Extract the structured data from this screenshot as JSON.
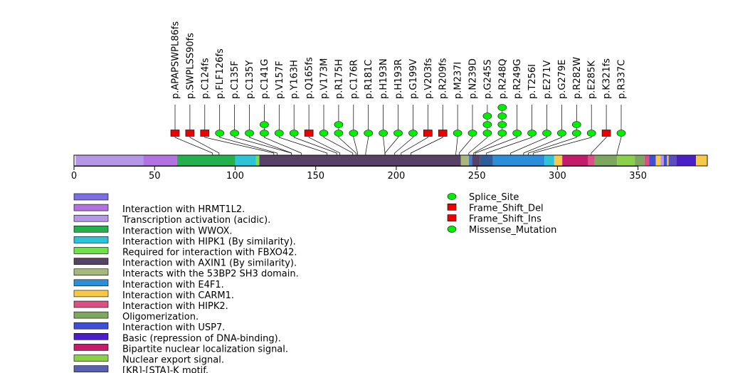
{
  "chart_data": {
    "type": "lollipop",
    "title": "",
    "xlabel": "",
    "ylabel": "",
    "protein_length": 393,
    "x_ticks": [
      0,
      50,
      100,
      150,
      200,
      250,
      300,
      350
    ],
    "domains": [
      {
        "start": 1,
        "end": 43,
        "color": "#b497e6"
      },
      {
        "start": 43,
        "end": 64,
        "color": "#b273e1"
      },
      {
        "start": 64,
        "end": 100,
        "color": "#22b14c"
      },
      {
        "start": 100,
        "end": 113,
        "color": "#2ec4d8"
      },
      {
        "start": 113,
        "end": 115,
        "color": "#6ee14b"
      },
      {
        "start": 115,
        "end": 240,
        "color": "#574167"
      },
      {
        "start": 240,
        "end": 245,
        "color": "#a8b87c"
      },
      {
        "start": 245,
        "end": 247,
        "color": "#3f7fd8"
      },
      {
        "start": 247,
        "end": 252,
        "color": "#574167"
      },
      {
        "start": 252,
        "end": 260,
        "color": "#2f5d9c"
      },
      {
        "start": 260,
        "end": 292,
        "color": "#2a8ed8"
      },
      {
        "start": 292,
        "end": 298,
        "color": "#2ec4d8"
      },
      {
        "start": 298,
        "end": 303,
        "color": "#f7c948"
      },
      {
        "start": 303,
        "end": 319,
        "color": "#c41b6a"
      },
      {
        "start": 319,
        "end": 323,
        "color": "#d94f86"
      },
      {
        "start": 323,
        "end": 337,
        "color": "#7da65e"
      },
      {
        "start": 337,
        "end": 348,
        "color": "#8cd04a"
      },
      {
        "start": 348,
        "end": 354,
        "color": "#7da65e"
      },
      {
        "start": 354,
        "end": 357,
        "color": "#d94f86"
      },
      {
        "start": 357,
        "end": 361,
        "color": "#3f4fd8"
      },
      {
        "start": 361,
        "end": 364,
        "color": "#f7c948"
      },
      {
        "start": 364,
        "end": 366,
        "color": "#b497e6"
      },
      {
        "start": 366,
        "end": 368,
        "color": "#3f4fd8"
      },
      {
        "start": 368,
        "end": 369,
        "color": "#f7c948"
      },
      {
        "start": 369,
        "end": 374,
        "color": "#5a4fbf"
      },
      {
        "start": 374,
        "end": 386,
        "color": "#4b1fc8"
      },
      {
        "start": 386,
        "end": 393,
        "color": "#f7c948"
      }
    ],
    "mutations": [
      {
        "label": "p.APAPSWPL86fs",
        "position": 86,
        "type": "Frame_Shift_Del",
        "count": 1
      },
      {
        "label": "p.SWPLSS90fs",
        "position": 90,
        "type": "Frame_Shift_Del",
        "count": 1
      },
      {
        "label": "p.C124fs",
        "position": 124,
        "type": "Frame_Shift_Del",
        "count": 1
      },
      {
        "label": "p.FLF126fs",
        "position": 126,
        "type": "Splice_Site",
        "count": 1
      },
      {
        "label": "p.C135F",
        "position": 135,
        "type": "Missense_Mutation",
        "count": 1
      },
      {
        "label": "p.C135Y",
        "position": 135,
        "type": "Missense_Mutation",
        "count": 1
      },
      {
        "label": "p.C141G",
        "position": 141,
        "type": "Missense_Mutation",
        "count": 2
      },
      {
        "label": "p.V157F",
        "position": 157,
        "type": "Missense_Mutation",
        "count": 1
      },
      {
        "label": "p.Y163H",
        "position": 163,
        "type": "Missense_Mutation",
        "count": 1
      },
      {
        "label": "p.Q165fs",
        "position": 165,
        "type": "Frame_Shift_Del",
        "count": 1
      },
      {
        "label": "p.V173M",
        "position": 173,
        "type": "Missense_Mutation",
        "count": 1
      },
      {
        "label": "p.R175H",
        "position": 175,
        "type": "Missense_Mutation",
        "count": 2
      },
      {
        "label": "p.C176R",
        "position": 176,
        "type": "Missense_Mutation",
        "count": 1
      },
      {
        "label": "p.R181C",
        "position": 181,
        "type": "Missense_Mutation",
        "count": 1
      },
      {
        "label": "p.H193N",
        "position": 193,
        "type": "Missense_Mutation",
        "count": 1
      },
      {
        "label": "p.H193R",
        "position": 193,
        "type": "Missense_Mutation",
        "count": 1
      },
      {
        "label": "p.G199V",
        "position": 199,
        "type": "Missense_Mutation",
        "count": 1
      },
      {
        "label": "p.V203fs",
        "position": 203,
        "type": "Frame_Shift_Del",
        "count": 1
      },
      {
        "label": "p.R209fs",
        "position": 209,
        "type": "Frame_Shift_Ins",
        "count": 1
      },
      {
        "label": "p.M237I",
        "position": 237,
        "type": "Missense_Mutation",
        "count": 1
      },
      {
        "label": "p.N239D",
        "position": 239,
        "type": "Missense_Mutation",
        "count": 1
      },
      {
        "label": "p.G245S",
        "position": 245,
        "type": "Missense_Mutation",
        "count": 3
      },
      {
        "label": "p.R248Q",
        "position": 248,
        "type": "Missense_Mutation",
        "count": 4
      },
      {
        "label": "p.R249G",
        "position": 249,
        "type": "Missense_Mutation",
        "count": 1
      },
      {
        "label": "p.T256I",
        "position": 256,
        "type": "Missense_Mutation",
        "count": 1
      },
      {
        "label": "p.E271V",
        "position": 271,
        "type": "Missense_Mutation",
        "count": 1
      },
      {
        "label": "p.G279E",
        "position": 279,
        "type": "Missense_Mutation",
        "count": 1
      },
      {
        "label": "p.R282W",
        "position": 282,
        "type": "Missense_Mutation",
        "count": 2
      },
      {
        "label": "p.E285K",
        "position": 285,
        "type": "Missense_Mutation",
        "count": 1
      },
      {
        "label": "p.K321fs",
        "position": 321,
        "type": "Frame_Shift_Del",
        "count": 1
      },
      {
        "label": "p.R337C",
        "position": 337,
        "type": "Missense_Mutation",
        "count": 1
      }
    ],
    "domain_legend": [
      {
        "label": "",
        "color": "#7b6fe3"
      },
      {
        "label": "Interaction with HRMT1L2.",
        "color": "#b273e1"
      },
      {
        "label": "Transcription activation (acidic).",
        "color": "#b497e6"
      },
      {
        "label": "Interaction with WWOX.",
        "color": "#22b14c"
      },
      {
        "label": "Interaction with HIPK1 (By similarity).",
        "color": "#2ec4d8"
      },
      {
        "label": "Required for interaction with FBXO42.",
        "color": "#6ee14b"
      },
      {
        "label": "Interaction with AXIN1 (By similarity).",
        "color": "#574167"
      },
      {
        "label": "Interacts with the 53BP2 SH3 domain.",
        "color": "#a8b87c"
      },
      {
        "label": "Interaction with E4F1.",
        "color": "#2a8ed8"
      },
      {
        "label": "Interaction with CARM1.",
        "color": "#f7c948"
      },
      {
        "label": "Interaction with HIPK2.",
        "color": "#d94f86"
      },
      {
        "label": "Oligomerization.",
        "color": "#7da65e"
      },
      {
        "label": "Interaction with USP7.",
        "color": "#3f4fd8"
      },
      {
        "label": "Basic (repression of DNA-binding).",
        "color": "#4b1fc8"
      },
      {
        "label": "Bipartite nuclear localization signal.",
        "color": "#c41b6a"
      },
      {
        "label": "Nuclear export signal.",
        "color": "#8cd04a"
      },
      {
        "label": "[KR]-[STA]-K motif.",
        "color": "#5a5fb0"
      }
    ],
    "mutation_legend": [
      {
        "label": "Splice_Site",
        "shape": "ellipse",
        "color": "#00ee00"
      },
      {
        "label": "Frame_Shift_Del",
        "shape": "square",
        "color": "#ee0000"
      },
      {
        "label": "Frame_Shift_Ins",
        "shape": "square",
        "color": "#ee0000"
      },
      {
        "label": "Missense_Mutation",
        "shape": "ellipse",
        "color": "#00ee00"
      }
    ]
  }
}
